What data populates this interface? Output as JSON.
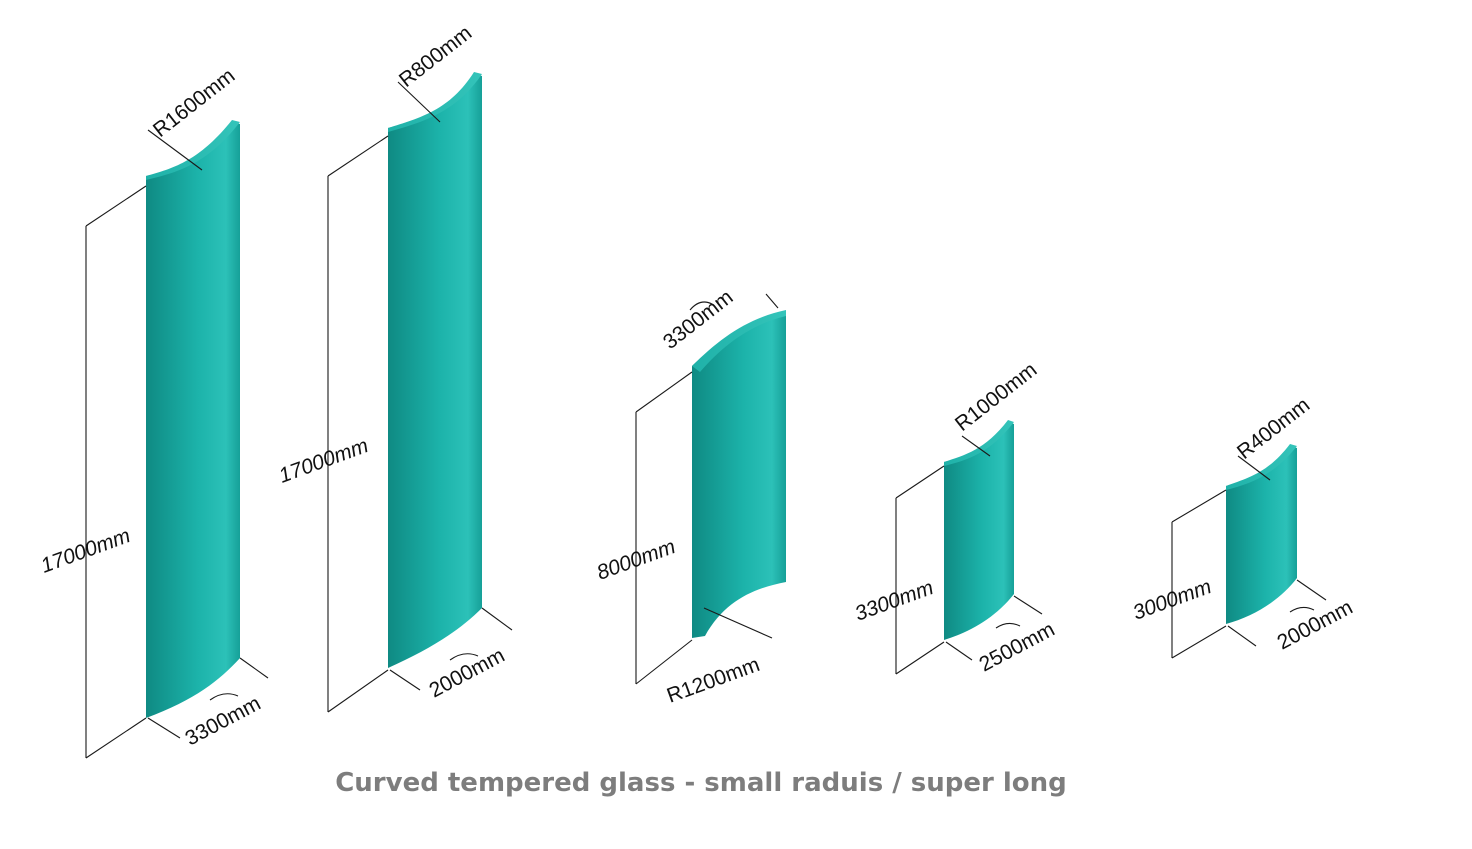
{
  "caption": "Curved tempered glass - small raduis  / super long",
  "colors": {
    "glass_light": "#36c2b8",
    "glass_mid": "#17a79f",
    "glass_dark": "#0e7f78",
    "edge": "#0d716b"
  },
  "panels": [
    {
      "radius": "R1600mm",
      "height": "17000mm",
      "arc": "3300mm"
    },
    {
      "radius": "R800mm",
      "height": "17000mm",
      "arc": "2000mm"
    },
    {
      "radius": "R1200mm",
      "height": "8000mm",
      "arc": "3300mm"
    },
    {
      "radius": "R1000mm",
      "height": "3300mm",
      "arc": "2500mm"
    },
    {
      "radius": "R400mm",
      "height": "3000mm",
      "arc": "2000mm"
    }
  ]
}
